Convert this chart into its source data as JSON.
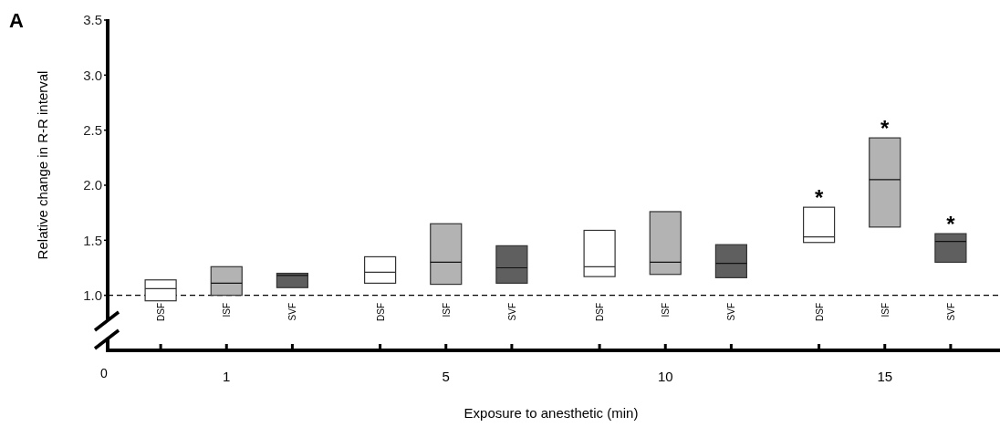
{
  "chart_data": {
    "type": "box",
    "xlabel": "Exposure to anesthetic (min)",
    "ylabel": "Relative change in R-R interval",
    "categories": [
      "1",
      "5",
      "10",
      "15"
    ],
    "series": [
      {
        "name": "DSF",
        "color": "#ffffff",
        "boxes": [
          {
            "low": 0.95,
            "q1": 0.95,
            "median": 1.06,
            "q3": 1.14,
            "high": 1.14
          },
          {
            "low": 1.11,
            "q1": 1.11,
            "median": 1.21,
            "q3": 1.35,
            "high": 1.35
          },
          {
            "low": 1.17,
            "q1": 1.17,
            "median": 1.26,
            "q3": 1.59,
            "high": 1.59
          },
          {
            "low": 1.48,
            "q1": 1.48,
            "median": 1.53,
            "q3": 1.8,
            "high": 1.8
          }
        ]
      },
      {
        "name": "ISF",
        "color": "#b3b3b3",
        "boxes": [
          {
            "low": 1.0,
            "q1": 1.0,
            "median": 1.11,
            "q3": 1.26,
            "high": 1.26
          },
          {
            "low": 1.1,
            "q1": 1.1,
            "median": 1.3,
            "q3": 1.65,
            "high": 1.65
          },
          {
            "low": 1.19,
            "q1": 1.19,
            "median": 1.3,
            "q3": 1.76,
            "high": 1.76
          },
          {
            "low": 1.62,
            "q1": 1.62,
            "median": 2.05,
            "q3": 2.43,
            "high": 2.43
          }
        ]
      },
      {
        "name": "SVF",
        "color": "#5f5f5f",
        "boxes": [
          {
            "low": 1.07,
            "q1": 1.07,
            "median": 1.18,
            "q3": 1.2,
            "high": 1.2
          },
          {
            "low": 1.11,
            "q1": 1.11,
            "median": 1.25,
            "q3": 1.45,
            "high": 1.45
          },
          {
            "low": 1.16,
            "q1": 1.16,
            "median": 1.29,
            "q3": 1.46,
            "high": 1.46
          },
          {
            "low": 1.3,
            "q1": 1.3,
            "median": 1.49,
            "q3": 1.56,
            "high": 1.56
          }
        ]
      }
    ],
    "ylim": [
      0.5,
      3.5
    ],
    "yticks": [
      {
        "value": 1,
        "label": "1.0"
      },
      {
        "value": 1.5,
        "label": "1.5"
      },
      {
        "value": 2,
        "label": "2.0"
      },
      {
        "value": 2.5,
        "label": "2.5"
      },
      {
        "value": 3,
        "label": "3.0"
      },
      {
        "value": 3.5,
        "label": "3.5"
      }
    ],
    "ref_lines": [
      {
        "axis": "y",
        "value": 1,
        "line_style": "dashed",
        "color": "#000000"
      }
    ],
    "annotations": [
      "A",
      "0",
      "*",
      "*",
      "*"
    ]
  }
}
